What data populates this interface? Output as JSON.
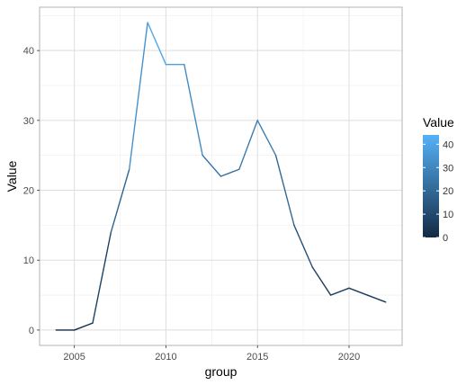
{
  "chart_data": {
    "type": "line",
    "title": "",
    "xlabel": "group",
    "ylabel": "Value",
    "xlim": [
      2003.1,
      2022.9
    ],
    "ylim": [
      -2.2,
      46.2
    ],
    "grid": true,
    "theme": "light",
    "x_ticks": [
      2005,
      2010,
      2015,
      2020
    ],
    "x_tick_labels": [
      "2005",
      "2010",
      "2015",
      "2020"
    ],
    "x_minor_ticks": [
      2007.5,
      2012.5,
      2017.5
    ],
    "y_ticks": [
      0,
      10,
      20,
      30,
      40
    ],
    "y_tick_labels": [
      "0",
      "10",
      "20",
      "30",
      "40"
    ],
    "y_minor_ticks": [
      5,
      15,
      25,
      35,
      45
    ],
    "series": [
      {
        "x": [
          2004,
          2005,
          2006,
          2007,
          2008,
          2009,
          2010,
          2011,
          2012,
          2013,
          2014,
          2015,
          2016,
          2017,
          2018,
          2019,
          2020,
          2021,
          2022
        ],
        "y": [
          0,
          0,
          1,
          14,
          23,
          44,
          38,
          38,
          25,
          22,
          23,
          30,
          25,
          15,
          9,
          5,
          6,
          5,
          4
        ]
      }
    ],
    "color_scale": {
      "title": "Value",
      "domain": [
        0,
        44
      ],
      "low_color": "#132B43",
      "high_color": "#56B1F7",
      "breaks": [
        0,
        10,
        20,
        30,
        40
      ],
      "break_labels": [
        "0",
        "10",
        "20",
        "30",
        "40"
      ],
      "position": "right"
    },
    "colors": {
      "panel_border": "#b3b3b3",
      "grid_major": "#dedede",
      "grid_minor": "#eeeeee"
    }
  }
}
